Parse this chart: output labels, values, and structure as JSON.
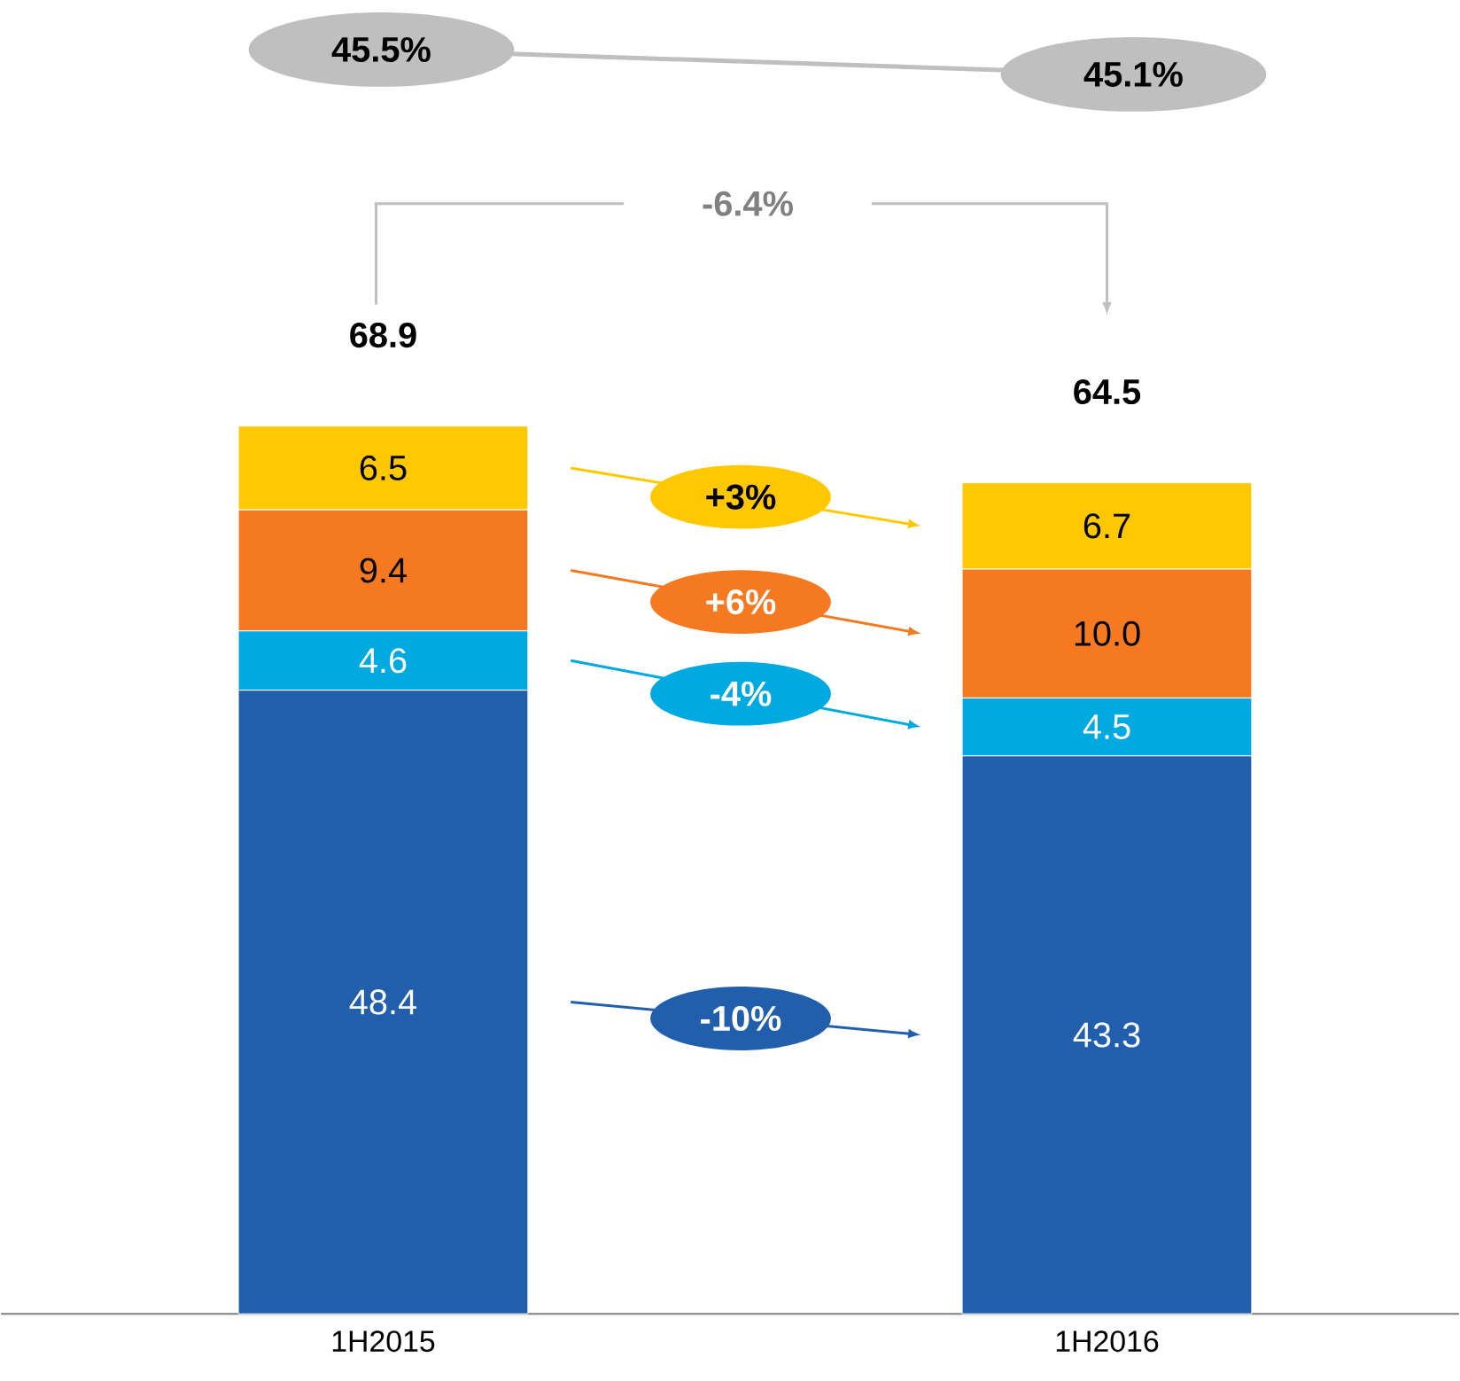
{
  "chart_data": {
    "type": "bar",
    "stacked": true,
    "categories": [
      "1H2015",
      "1H2016"
    ],
    "series": [
      {
        "color": "#215fac",
        "values": [
          48.4,
          43.3
        ],
        "value_labels": [
          "48.4",
          "43.3"
        ]
      },
      {
        "color": "#00a9e0",
        "values": [
          4.6,
          4.5
        ],
        "value_labels": [
          "4.6",
          "4.5"
        ]
      },
      {
        "color": "#f47920",
        "values": [
          9.4,
          10.0
        ],
        "value_labels": [
          "9.4",
          "10.0"
        ]
      },
      {
        "color": "#ffc800",
        "values": [
          6.5,
          6.7
        ],
        "value_labels": [
          "6.5",
          "6.7"
        ]
      }
    ],
    "totals": [
      "68.9",
      "64.5"
    ],
    "annotations": [
      "45.5%",
      "45.1%",
      "-6.4%",
      "+3%",
      "+6%",
      "-4%",
      "-10%"
    ]
  }
}
